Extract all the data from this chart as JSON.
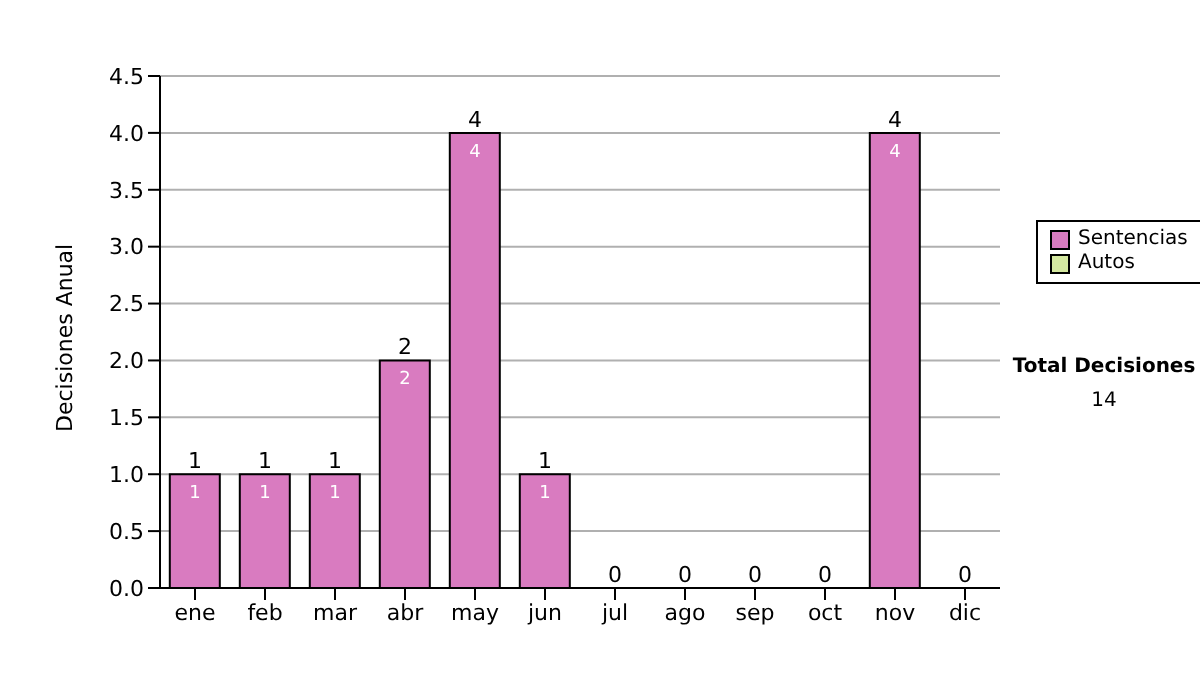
{
  "chart_data": {
    "type": "bar",
    "ylabel": "Decisiones Anual",
    "categories": [
      "ene",
      "feb",
      "mar",
      "abr",
      "may",
      "jun",
      "jul",
      "ago",
      "sep",
      "oct",
      "nov",
      "dic"
    ],
    "series": [
      {
        "name": "Sentencias",
        "color": "#d97bc0",
        "values": [
          1,
          1,
          1,
          2,
          4,
          1,
          0,
          0,
          0,
          0,
          4,
          0
        ],
        "value_labels": [
          "1",
          "1",
          "1",
          "2",
          "4",
          "1",
          null,
          null,
          null,
          null,
          "4",
          null
        ]
      },
      {
        "name": "Autos",
        "color": "#d4e8a0",
        "values": [
          0,
          0,
          0,
          0,
          0,
          0,
          0,
          0,
          0,
          0,
          0,
          0
        ]
      }
    ],
    "stacked": true,
    "totals": [
      "1",
      "1",
      "1",
      "2",
      "4",
      "1",
      "0",
      "0",
      "0",
      "0",
      "4",
      "0"
    ],
    "ylim": [
      0,
      4.5
    ],
    "yticks": [
      {
        "value": 0,
        "label": "0.0"
      },
      {
        "value": 0.5,
        "label": "0.5"
      },
      {
        "value": 1,
        "label": "1.0"
      },
      {
        "value": 1.5,
        "label": "1.5"
      },
      {
        "value": 2,
        "label": "2.0"
      },
      {
        "value": 2.5,
        "label": "2.5"
      },
      {
        "value": 3,
        "label": "3.0"
      },
      {
        "value": 3.5,
        "label": "3.5"
      },
      {
        "value": 4,
        "label": "4.0"
      },
      {
        "value": 4.5,
        "label": "4.5"
      }
    ],
    "grid": "y",
    "legend": "right",
    "annotations": [
      "Total Decisiones",
      "14"
    ]
  }
}
